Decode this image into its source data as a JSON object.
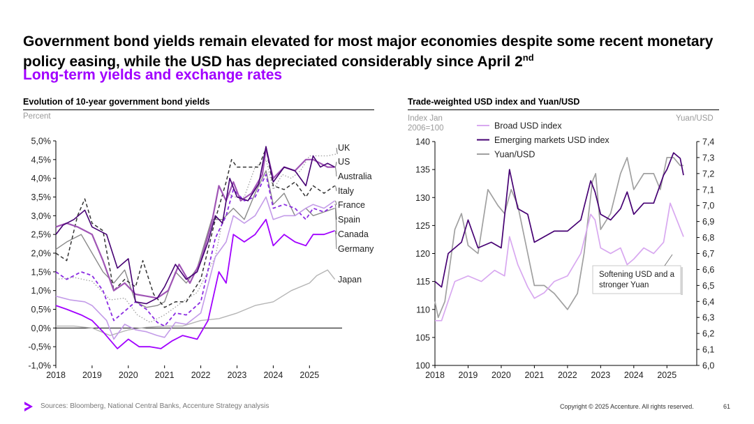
{
  "header": {
    "title": "Government bond yields remain elevated for most major economies despite some recent monetary policy easing, while the USD has depreciated considerably since April 2",
    "title_sup": "nd",
    "subtitle": "Long-term yields and exchange rates"
  },
  "left_panel": {
    "title": "Evolution of 10-year government bond yields",
    "unit": "Percent"
  },
  "right_panel": {
    "title": "Trade-weighted USD index and Yuan/USD",
    "unit_left": "Index Jan 2006=100",
    "unit_right": "Yuan/USD",
    "annotation": "Softening USD and a stronger Yuan"
  },
  "footer": {
    "sources": "Sources: Bloomberg, National Central Banks, Accenture Strategy analysis",
    "copyright": "Copyright © 2025 Accenture. All rights reserved.",
    "page": "61"
  },
  "colors": {
    "accent": "#a100ff",
    "dark_purple": "#460073",
    "light_purple": "#d8a8f0",
    "grey": "#a0a0a0"
  },
  "chart_data": [
    {
      "type": "line",
      "title": "Evolution of 10-year government bond yields",
      "ylabel": "Percent",
      "ylim": [
        -1.0,
        5.0
      ],
      "xlim": [
        2018,
        2025.9
      ],
      "yticks": [
        -1.0,
        -0.5,
        0.0,
        0.5,
        1.0,
        1.5,
        2.0,
        2.5,
        3.0,
        3.5,
        4.0,
        4.5,
        5.0
      ],
      "ytick_labels": [
        "-1,0%",
        "-0,5%",
        "0,0%",
        "0,5%",
        "1,0%",
        "1,5%",
        "2,0%",
        "2,5%",
        "3,0%",
        "3,5%",
        "4,0%",
        "4,5%",
        "5,0%"
      ],
      "xticks": [
        "2018",
        "2019",
        "2020",
        "2021",
        "2022",
        "2023",
        "2024",
        "2025"
      ],
      "series": [
        {
          "name": "UK",
          "x": [
            2018,
            2018.5,
            2019,
            2019.5,
            2019.9,
            2020.25,
            2020.6,
            2021,
            2021.5,
            2021.9,
            2022.4,
            2022.75,
            2022.9,
            2023.2,
            2023.5,
            2023.8,
            2024,
            2024.25,
            2024.5,
            2024.75,
            2025,
            2025.3,
            2025.5,
            2025.75
          ],
          "values": [
            1.3,
            1.35,
            1.25,
            0.75,
            0.8,
            0.35,
            0.15,
            0.35,
            0.7,
            0.95,
            1.9,
            3.6,
            3.5,
            3.5,
            4.3,
            4.5,
            3.7,
            4.1,
            4.0,
            4.2,
            4.6,
            4.6,
            4.6,
            4.65
          ]
        },
        {
          "name": "US",
          "x": [
            2018,
            2018.2,
            2018.5,
            2018.8,
            2019,
            2019.4,
            2019.7,
            2020,
            2020.2,
            2020.5,
            2020.8,
            2021,
            2021.3,
            2021.6,
            2021.9,
            2022.2,
            2022.4,
            2022.6,
            2022.8,
            2023,
            2023.3,
            2023.6,
            2023.8,
            2024,
            2024.3,
            2024.6,
            2024.9,
            2025.1,
            2025.3,
            2025.5,
            2025.7
          ],
          "values": [
            2.5,
            2.75,
            2.9,
            3.15,
            2.7,
            2.5,
            1.6,
            1.85,
            0.7,
            0.65,
            0.8,
            1.1,
            1.7,
            1.3,
            1.5,
            2.3,
            3.0,
            2.8,
            4.0,
            3.5,
            3.4,
            3.85,
            4.85,
            3.9,
            4.3,
            4.2,
            3.8,
            4.6,
            4.3,
            4.4,
            4.3
          ]
        },
        {
          "name": "Australia",
          "x": [
            2018,
            2018.3,
            2018.6,
            2019,
            2019.3,
            2019.6,
            2019.9,
            2020.2,
            2020.5,
            2020.8,
            2021.1,
            2021.4,
            2021.7,
            2022,
            2022.3,
            2022.5,
            2022.7,
            2022.9,
            2023.1,
            2023.4,
            2023.7,
            2023.8,
            2024,
            2024.3,
            2024.6,
            2024.9,
            2025.1,
            2025.3,
            2025.5,
            2025.7
          ],
          "values": [
            2.7,
            2.8,
            2.7,
            2.5,
            1.8,
            1.0,
            1.2,
            0.9,
            0.85,
            0.8,
            1.0,
            1.7,
            1.2,
            1.8,
            2.8,
            3.8,
            3.4,
            3.9,
            3.4,
            3.6,
            4.1,
            4.8,
            4.0,
            4.3,
            4.2,
            4.5,
            4.5,
            4.4,
            4.3,
            4.3
          ]
        },
        {
          "name": "Italy",
          "x": [
            2018,
            2018.3,
            2018.6,
            2018.8,
            2019,
            2019.3,
            2019.6,
            2019.9,
            2020.2,
            2020.4,
            2020.7,
            2021,
            2021.3,
            2021.6,
            2022,
            2022.4,
            2022.7,
            2022.85,
            2023,
            2023.3,
            2023.6,
            2023.8,
            2024,
            2024.3,
            2024.6,
            2024.9,
            2025.1,
            2025.4,
            2025.7
          ],
          "values": [
            2.0,
            1.8,
            3.0,
            3.45,
            2.8,
            2.6,
            1.0,
            1.3,
            1.1,
            1.8,
            0.9,
            0.55,
            0.7,
            0.7,
            1.3,
            2.9,
            3.9,
            4.5,
            4.3,
            4.3,
            4.3,
            4.8,
            3.8,
            3.7,
            3.9,
            3.5,
            3.8,
            3.6,
            3.8
          ]
        },
        {
          "name": "France",
          "x": [
            2018,
            2018.4,
            2018.8,
            2019,
            2019.4,
            2019.6,
            2019.9,
            2020.2,
            2020.5,
            2020.8,
            2021,
            2021.3,
            2021.6,
            2022,
            2022.4,
            2022.7,
            2022.9,
            2023.2,
            2023.5,
            2023.8,
            2024,
            2024.3,
            2024.6,
            2024.9,
            2025.1,
            2025.4,
            2025.7
          ],
          "values": [
            0.85,
            0.75,
            0.7,
            0.6,
            0.2,
            -0.3,
            0.1,
            -0.05,
            -0.1,
            -0.2,
            -0.25,
            0.15,
            0.1,
            0.4,
            1.9,
            2.3,
            3.0,
            2.8,
            3.0,
            3.5,
            2.9,
            3.0,
            3.0,
            3.2,
            3.3,
            3.2,
            3.4
          ]
        },
        {
          "name": "Spain",
          "x": [
            2018,
            2018.3,
            2018.7,
            2019,
            2019.3,
            2019.6,
            2019.9,
            2020.2,
            2020.5,
            2020.8,
            2021,
            2021.3,
            2021.6,
            2022,
            2022.4,
            2022.7,
            2022.9,
            2023.2,
            2023.5,
            2023.8,
            2024,
            2024.3,
            2024.6,
            2024.9,
            2025.1,
            2025.4,
            2025.7
          ],
          "values": [
            1.5,
            1.3,
            1.5,
            1.4,
            1.0,
            0.2,
            0.45,
            0.7,
            0.5,
            0.15,
            0.05,
            0.4,
            0.35,
            0.7,
            2.4,
            3.0,
            3.7,
            3.4,
            3.5,
            4.1,
            3.2,
            3.3,
            3.2,
            2.9,
            3.2,
            3.1,
            3.3
          ]
        },
        {
          "name": "Canada",
          "x": [
            2018,
            2018.3,
            2018.7,
            2019,
            2019.3,
            2019.6,
            2019.9,
            2020.2,
            2020.5,
            2020.8,
            2021,
            2021.3,
            2021.6,
            2021.9,
            2022.3,
            2022.6,
            2022.9,
            2023.2,
            2023.5,
            2023.8,
            2024,
            2024.3,
            2024.6,
            2024.9,
            2025.1,
            2025.4,
            2025.7
          ],
          "values": [
            2.1,
            2.3,
            2.5,
            2.0,
            1.5,
            1.2,
            1.55,
            0.7,
            0.55,
            0.6,
            0.7,
            1.5,
            1.2,
            1.6,
            2.9,
            2.9,
            3.2,
            2.9,
            3.6,
            4.2,
            3.3,
            3.6,
            3.0,
            3.2,
            3.0,
            3.1,
            3.2
          ]
        },
        {
          "name": "Germany",
          "x": [
            2018,
            2018.3,
            2018.7,
            2019,
            2019.3,
            2019.7,
            2020,
            2020.3,
            2020.6,
            2020.9,
            2021.2,
            2021.5,
            2021.9,
            2022.2,
            2022.5,
            2022.7,
            2022.9,
            2023.2,
            2023.5,
            2023.8,
            2024,
            2024.3,
            2024.6,
            2024.9,
            2025.1,
            2025.4,
            2025.7
          ],
          "values": [
            0.6,
            0.5,
            0.35,
            0.2,
            -0.1,
            -0.55,
            -0.3,
            -0.5,
            -0.5,
            -0.55,
            -0.35,
            -0.2,
            -0.3,
            0.2,
            1.5,
            1.2,
            2.5,
            2.3,
            2.5,
            2.9,
            2.2,
            2.5,
            2.3,
            2.2,
            2.5,
            2.5,
            2.6
          ]
        },
        {
          "name": "Japan",
          "x": [
            2018,
            2018.5,
            2019,
            2019.5,
            2020,
            2020.5,
            2021,
            2021.5,
            2022,
            2022.5,
            2023,
            2023.5,
            2024,
            2024.5,
            2025,
            2025.2,
            2025.5,
            2025.7
          ],
          "values": [
            0.05,
            0.05,
            0.0,
            -0.2,
            -0.05,
            0.02,
            0.05,
            0.05,
            0.2,
            0.25,
            0.4,
            0.6,
            0.7,
            1.0,
            1.2,
            1.4,
            1.55,
            1.3
          ]
        }
      ]
    },
    {
      "type": "line",
      "title": "Trade-weighted USD index and Yuan/USD",
      "ylabel": "Index Jan 2006=100",
      "y2label": "Yuan/USD",
      "ylim": [
        100,
        140
      ],
      "y2lim": [
        6.0,
        7.4
      ],
      "xlim": [
        2018,
        2025.9
      ],
      "yticks": [
        100,
        105,
        110,
        115,
        120,
        125,
        130,
        135,
        140
      ],
      "y2tick_labels": [
        "6,0",
        "6,1",
        "6,2",
        "6,3",
        "6,4",
        "6,5",
        "6,6",
        "6,7",
        "6,8",
        "6,9",
        "7,0",
        "7,1",
        "7,2",
        "7,3",
        "7,4"
      ],
      "xticks": [
        "2018",
        "2019",
        "2020",
        "2021",
        "2022",
        "2023",
        "2024",
        "2025"
      ],
      "legend": [
        "Broad USD index",
        "Emerging markets USD index",
        "Yuan/USD"
      ],
      "series": [
        {
          "name": "Broad USD index",
          "axis": "left",
          "x": [
            2018,
            2018.2,
            2018.6,
            2019,
            2019.4,
            2019.8,
            2020.1,
            2020.25,
            2020.5,
            2020.8,
            2021,
            2021.3,
            2021.6,
            2022,
            2022.4,
            2022.7,
            2022.83,
            2023,
            2023.3,
            2023.6,
            2023.8,
            2024,
            2024.3,
            2024.6,
            2024.9,
            2025.1,
            2025.3,
            2025.5
          ],
          "values": [
            108,
            108,
            115,
            116,
            115,
            117,
            116,
            123,
            118,
            114,
            112,
            113,
            115,
            116,
            120,
            127,
            126,
            121,
            120,
            121,
            118,
            119,
            121,
            120,
            122,
            129,
            126,
            123
          ]
        },
        {
          "name": "Emerging markets USD index",
          "axis": "left",
          "x": [
            2018,
            2018.2,
            2018.4,
            2018.8,
            2019,
            2019.3,
            2019.7,
            2020,
            2020.25,
            2020.5,
            2020.8,
            2021,
            2021.3,
            2021.6,
            2022,
            2022.4,
            2022.7,
            2022.83,
            2023,
            2023.3,
            2023.6,
            2023.8,
            2024,
            2024.3,
            2024.6,
            2024.9,
            2025,
            2025.2,
            2025.4,
            2025.5
          ],
          "values": [
            115,
            114,
            120,
            122,
            126,
            121,
            122,
            121,
            135,
            128,
            127,
            122,
            123,
            124,
            124,
            126,
            133,
            131,
            127,
            126,
            128,
            131,
            127,
            129,
            129,
            134,
            135,
            138,
            137,
            134
          ]
        },
        {
          "name": "Yuan/USD",
          "axis": "right",
          "x": [
            2018,
            2018.1,
            2018.3,
            2018.6,
            2018.8,
            2019,
            2019.3,
            2019.6,
            2019.9,
            2020.1,
            2020.3,
            2020.5,
            2020.8,
            2021,
            2021.3,
            2021.6,
            2022,
            2022.3,
            2022.5,
            2022.75,
            2022.85,
            2023,
            2023.3,
            2023.6,
            2023.8,
            2024,
            2024.3,
            2024.6,
            2024.8,
            2025,
            2025.2,
            2025.4,
            2025.5
          ],
          "values": [
            6.4,
            6.3,
            6.4,
            6.85,
            6.95,
            6.75,
            6.7,
            7.1,
            7.0,
            6.95,
            7.1,
            7.0,
            6.7,
            6.5,
            6.5,
            6.45,
            6.35,
            6.45,
            6.7,
            7.15,
            7.2,
            6.85,
            6.95,
            7.2,
            7.3,
            7.1,
            7.2,
            7.2,
            7.1,
            7.3,
            7.3,
            7.25,
            7.25
          ]
        }
      ]
    }
  ]
}
